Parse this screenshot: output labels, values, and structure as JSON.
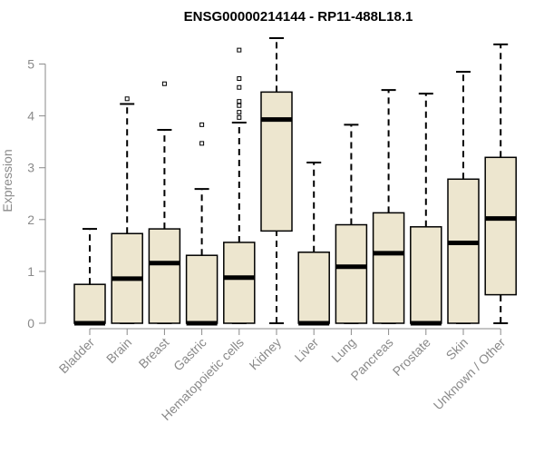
{
  "chart_data": {
    "type": "boxplot",
    "title": "ENSG00000214144 - RP11-488L18.1",
    "xlabel": "",
    "ylabel": "Expression",
    "ylim": [
      0,
      5.5
    ],
    "yticks": [
      "0",
      "1",
      "2",
      "3",
      "4",
      "5"
    ],
    "colors": {
      "box_fill": "#ede6cf",
      "box_stroke": "#000000",
      "axis": "#8a8a8a"
    },
    "categories": [
      "Bladder",
      "Brain",
      "Breast",
      "Gastric",
      "Hematopoietic cells",
      "Kidney",
      "Liver",
      "Lung",
      "Pancreas",
      "Prostate",
      "Skin",
      "Unknown / Other"
    ],
    "boxes": [
      {
        "category": "Bladder",
        "whisker_low": 0,
        "q1": 0,
        "median": 0,
        "q3": 0.75,
        "whisker_high": 1.82,
        "outliers": []
      },
      {
        "category": "Brain",
        "whisker_low": 0,
        "q1": 0,
        "median": 0.86,
        "q3": 1.73,
        "whisker_high": 4.23,
        "outliers": [
          4.33
        ]
      },
      {
        "category": "Breast",
        "whisker_low": 0,
        "q1": 0,
        "median": 1.16,
        "q3": 1.82,
        "whisker_high": 3.73,
        "outliers": [
          4.62
        ]
      },
      {
        "category": "Gastric",
        "whisker_low": 0,
        "q1": 0,
        "median": 0,
        "q3": 1.31,
        "whisker_high": 2.59,
        "outliers": [
          3.47,
          3.83
        ]
      },
      {
        "category": "Hematopoietic cells",
        "whisker_low": 0,
        "q1": 0,
        "median": 0.88,
        "q3": 1.56,
        "whisker_high": 3.87,
        "outliers": [
          3.97,
          4.07,
          4.2,
          4.28,
          4.55,
          4.72,
          5.27
        ]
      },
      {
        "category": "Kidney",
        "whisker_low": 0,
        "q1": 1.78,
        "median": 3.93,
        "q3": 4.46,
        "whisker_high": 5.5,
        "outliers": []
      },
      {
        "category": "Liver",
        "whisker_low": 0,
        "q1": 0,
        "median": 0,
        "q3": 1.37,
        "whisker_high": 3.1,
        "outliers": []
      },
      {
        "category": "Lung",
        "whisker_low": 0,
        "q1": 0,
        "median": 1.09,
        "q3": 1.9,
        "whisker_high": 3.83,
        "outliers": []
      },
      {
        "category": "Pancreas",
        "whisker_low": 0,
        "q1": 0,
        "median": 1.35,
        "q3": 2.13,
        "whisker_high": 4.5,
        "outliers": []
      },
      {
        "category": "Prostate",
        "whisker_low": 0,
        "q1": 0,
        "median": 0,
        "q3": 1.86,
        "whisker_high": 4.43,
        "outliers": []
      },
      {
        "category": "Skin",
        "whisker_low": 0,
        "q1": 0,
        "median": 1.55,
        "q3": 2.78,
        "whisker_high": 4.85,
        "outliers": []
      },
      {
        "category": "Unknown / Other",
        "whisker_low": 0,
        "q1": 0.55,
        "median": 2.02,
        "q3": 3.2,
        "whisker_high": 5.38,
        "outliers": []
      }
    ]
  }
}
